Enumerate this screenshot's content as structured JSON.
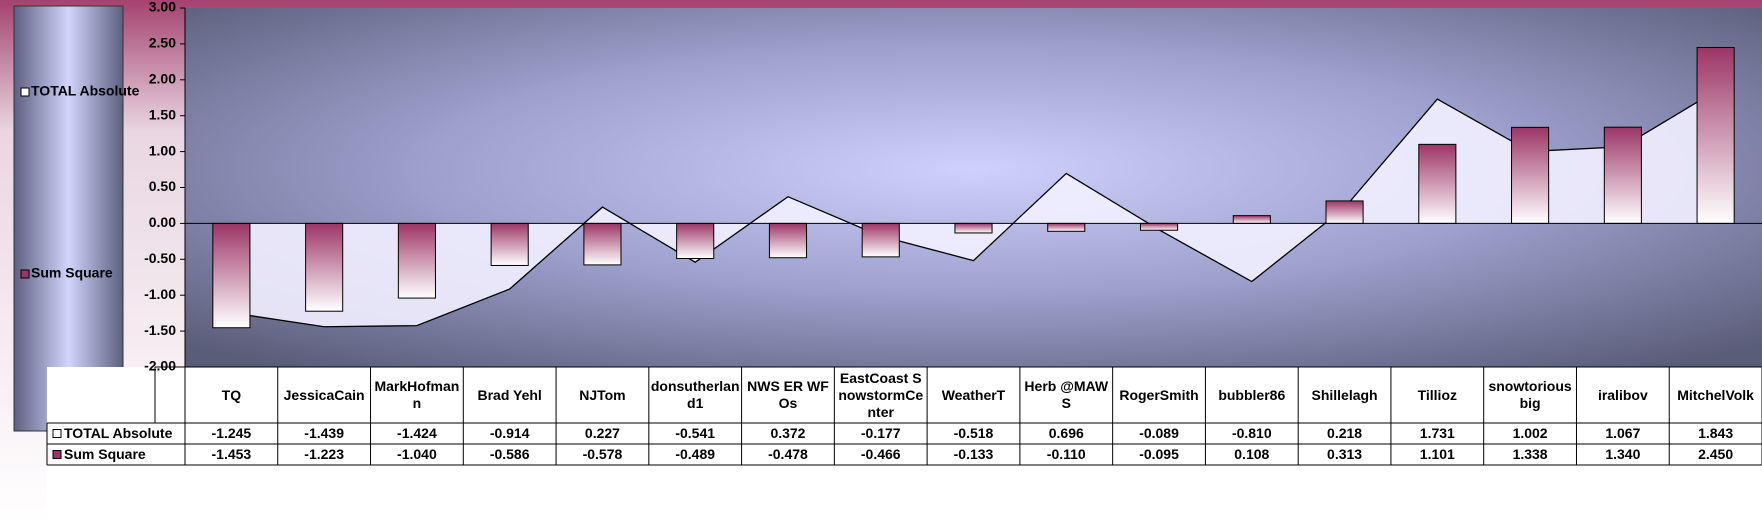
{
  "chart_data": {
    "type": "combo",
    "categories": [
      "TQ",
      "JessicaCain",
      "MarkHofmann",
      "Brad Yehl",
      "NJTom",
      "donsutherland1",
      "NWS ER WFOs",
      "EastCoast SnowstormCenter",
      "WeatherT",
      "Herb @MAWS",
      "RogerSmith",
      "bubbler86",
      "Shillelagh",
      "Tillioz",
      "snowtoriousbig",
      "iralibov",
      "MitchelVolk"
    ],
    "series": [
      {
        "name": "TOTAL Absolute",
        "type": "area",
        "color": "#f2f0ff",
        "values": [
          -1.245,
          -1.439,
          -1.424,
          -0.914,
          0.227,
          -0.541,
          0.372,
          -0.177,
          -0.518,
          0.696,
          -0.089,
          -0.81,
          0.218,
          1.731,
          1.002,
          1.067,
          1.843
        ],
        "value_labels": [
          "-1.245",
          "-1.439",
          "-1.424",
          "-0.914",
          "0.227",
          "-0.541",
          "0.372",
          "-0.177",
          "-0.518",
          "0.696",
          "-0.089",
          "-0.810",
          "0.218",
          "1.731",
          "1.002",
          "1.067",
          "1.843"
        ]
      },
      {
        "name": "Sum Square",
        "type": "bar",
        "color": "#9c3566",
        "values": [
          -1.453,
          -1.223,
          -1.04,
          -0.586,
          -0.578,
          -0.489,
          -0.478,
          -0.466,
          -0.133,
          -0.11,
          -0.095,
          0.108,
          0.313,
          1.101,
          1.338,
          1.34,
          2.45
        ],
        "value_labels": [
          "-1.453",
          "-1.223",
          "-1.040",
          "-0.586",
          "-0.578",
          "-0.489",
          "-0.478",
          "-0.466",
          "-0.133",
          "-0.110",
          "-0.095",
          "0.108",
          "0.313",
          "1.101",
          "1.338",
          "1.340",
          "2.450"
        ]
      }
    ],
    "ylim": [
      -2,
      3
    ],
    "yticks": [
      {
        "value": -2,
        "label": "-2.00"
      },
      {
        "value": -1.5,
        "label": "-1.50"
      },
      {
        "value": -1,
        "label": "-1.00"
      },
      {
        "value": -0.5,
        "label": "-0.50"
      },
      {
        "value": 0,
        "label": "0.00"
      },
      {
        "value": 0.5,
        "label": "0.50"
      },
      {
        "value": 1,
        "label": "1.00"
      },
      {
        "value": 1.5,
        "label": "1.50"
      },
      {
        "value": 2,
        "label": "2.00"
      },
      {
        "value": 2.5,
        "label": "2.50"
      },
      {
        "value": 3,
        "label": "3.00"
      }
    ],
    "grid": false,
    "legend": "left",
    "data_table": true
  }
}
